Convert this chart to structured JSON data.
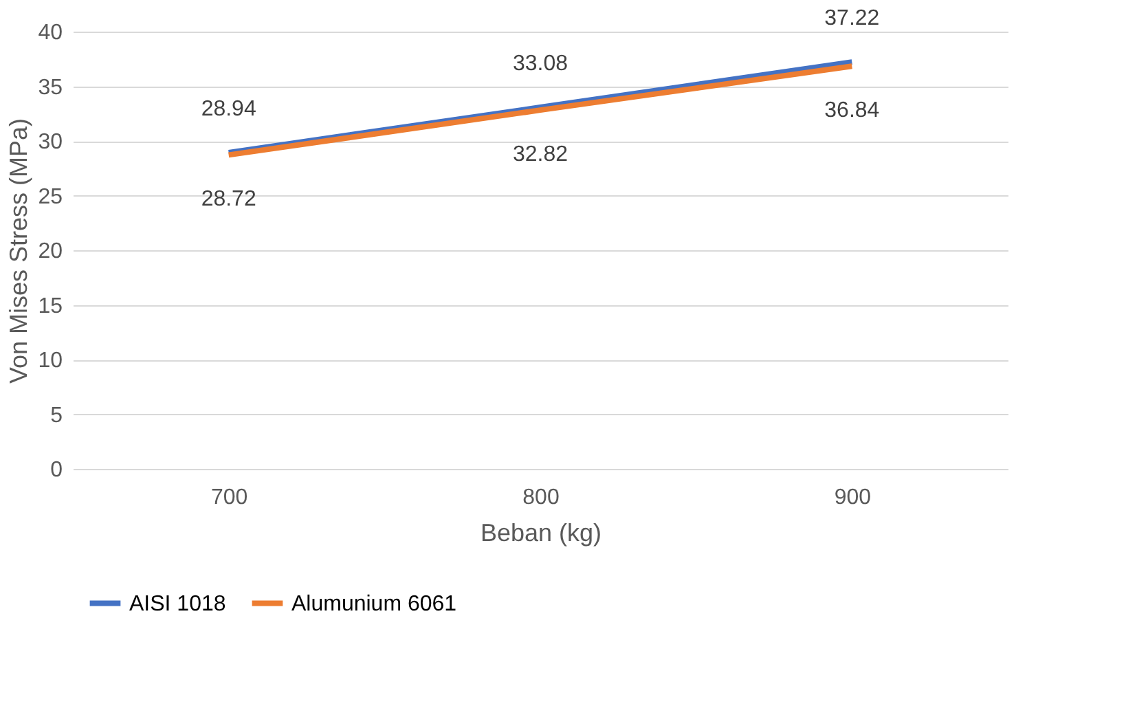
{
  "chart_data": {
    "type": "line",
    "xlabel": "Beban (kg)",
    "ylabel": "Von Mises Stress (MPa)",
    "categories": [
      "700",
      "800",
      "900"
    ],
    "series": [
      {
        "name": "AISI 1018",
        "color": "#4472c4",
        "values": [
          28.94,
          33.08,
          37.22
        ]
      },
      {
        "name": "Alumunium 6061",
        "color": "#ed7d31",
        "values": [
          28.72,
          32.82,
          36.84
        ]
      }
    ],
    "ylim": [
      0,
      40
    ],
    "yticks": [
      0,
      5,
      10,
      15,
      20,
      25,
      30,
      35,
      40
    ],
    "grid": "y",
    "legend": "bottom",
    "data_labels": true,
    "marker": "none",
    "line_style": "solid"
  }
}
